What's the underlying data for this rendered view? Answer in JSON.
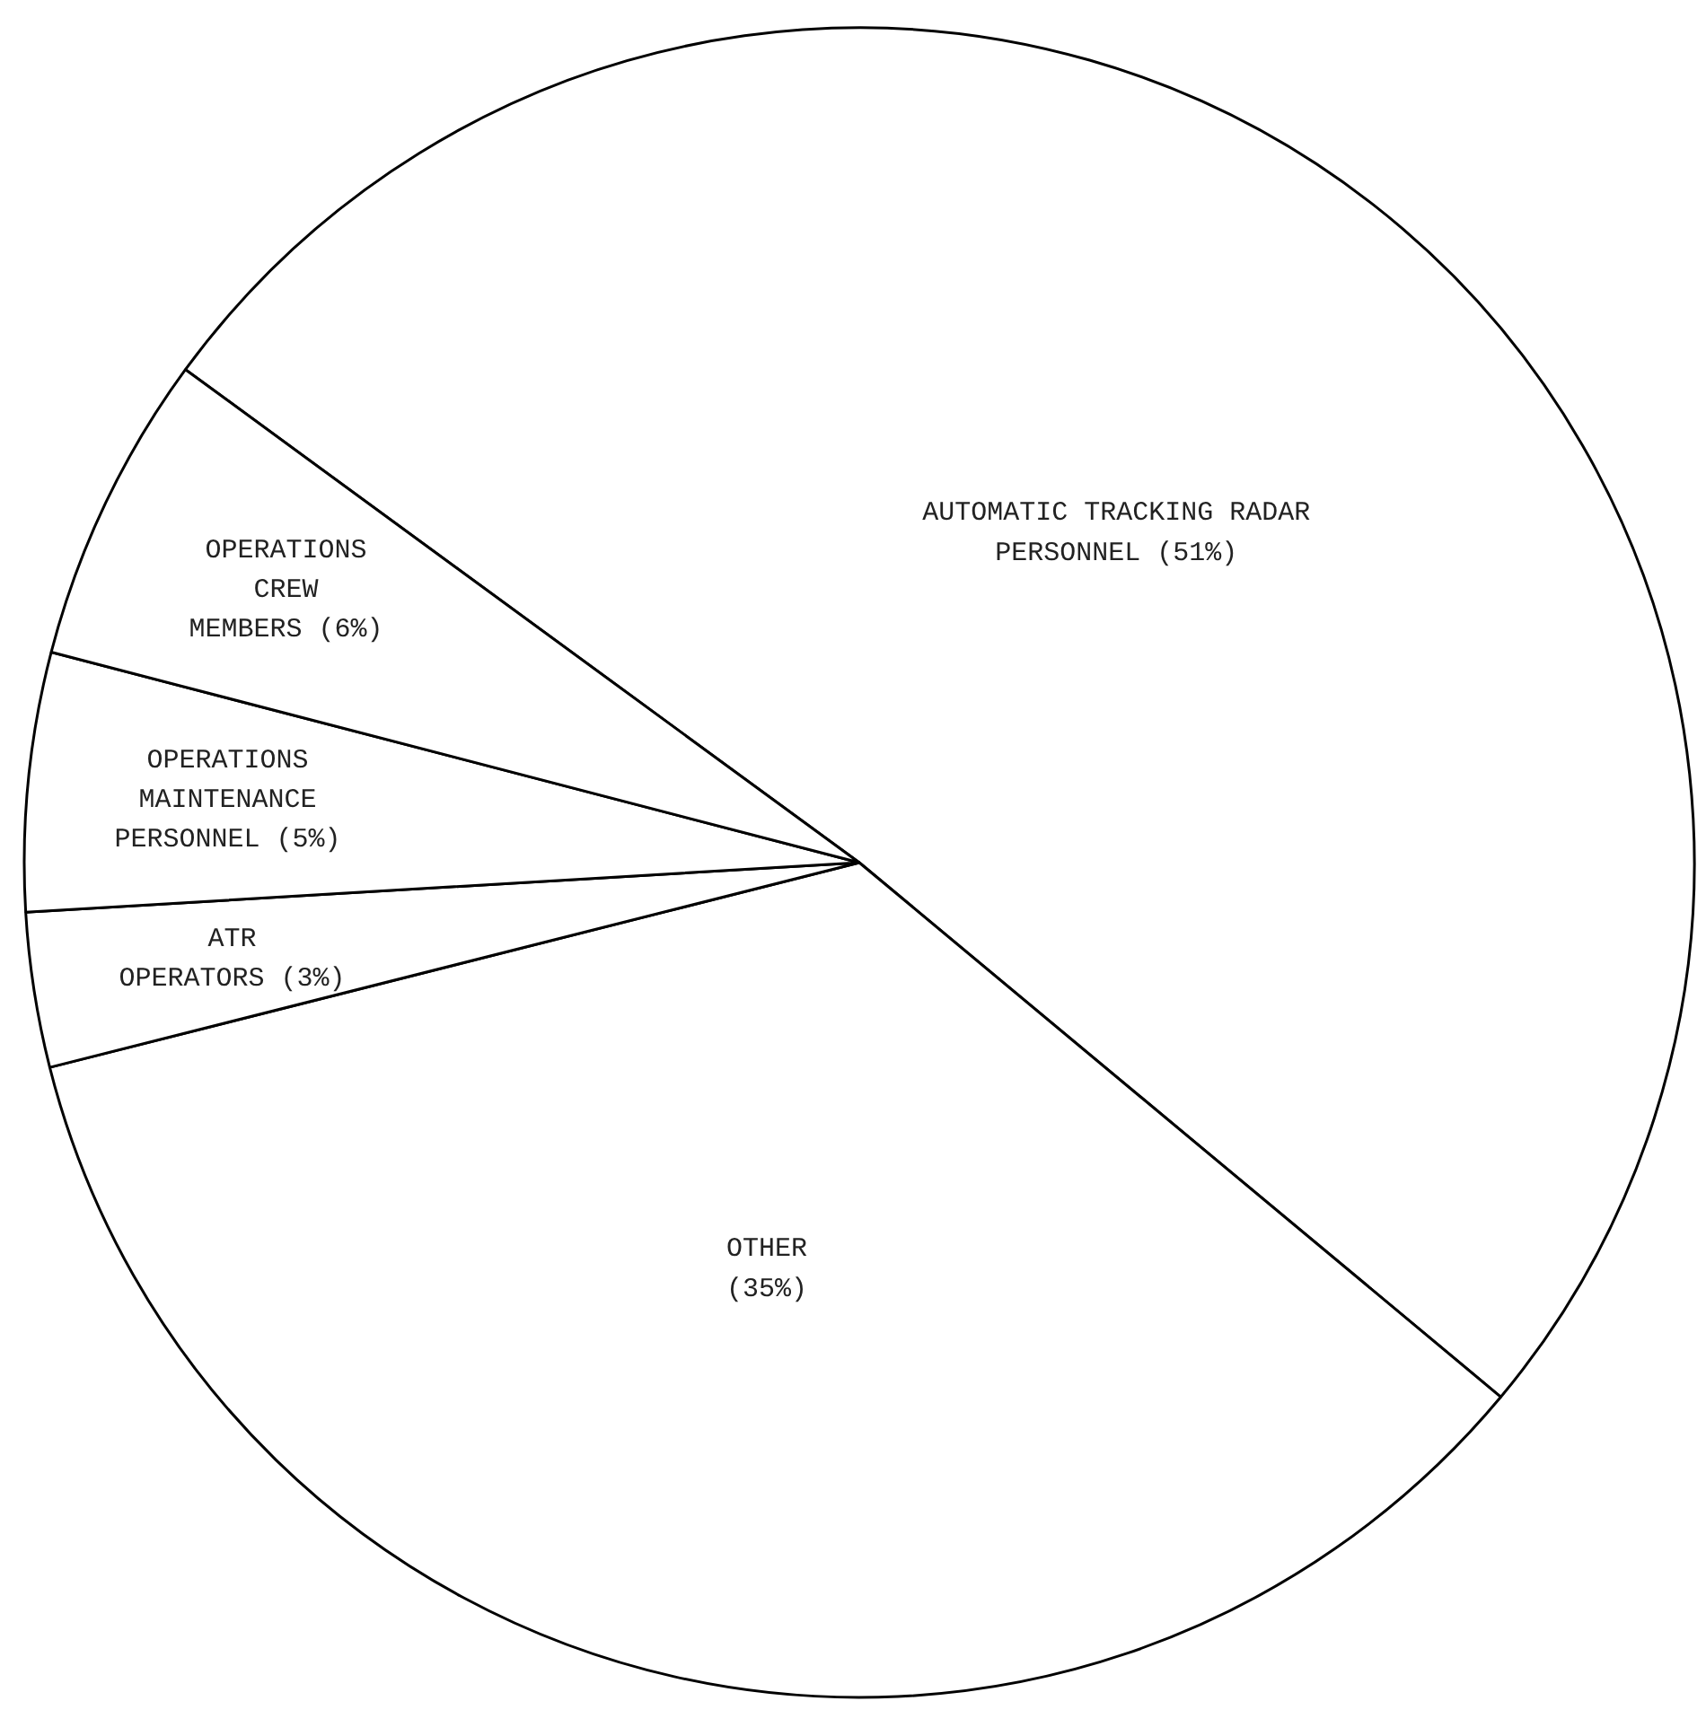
{
  "chart_data": {
    "type": "pie",
    "categories": [
      "AUTOMATIC TRACKING RADAR\nPERSONNEL",
      "OTHER\n",
      "ATR\nOPERATORS",
      "OPERATIONS\nMAINTENANCE\nPERSONNEL",
      "OPERATIONS\nCREW\nMEMBERS"
    ],
    "values": [
      51,
      35,
      3,
      5,
      6
    ],
    "value_labels": [
      "(51%)",
      "(35%)",
      "(3%)",
      "(5%)",
      "(6%)"
    ],
    "colors": [
      "#ffffff",
      "#ffffff",
      "#ffffff",
      "#ffffff",
      "#ffffff"
    ]
  }
}
